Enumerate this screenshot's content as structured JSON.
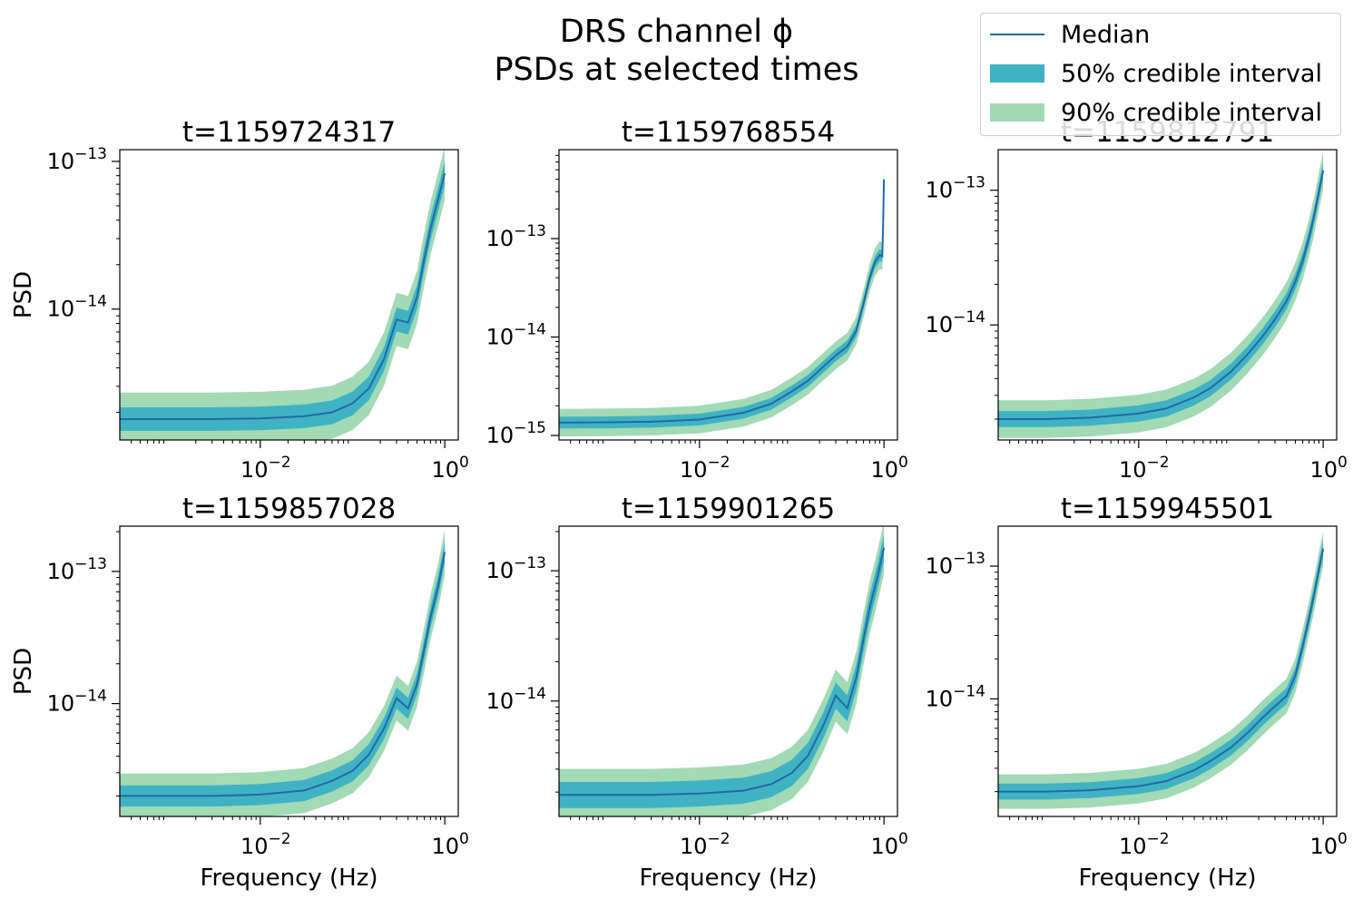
{
  "title": "DRS channel ϕ",
  "subtitle": "PSDs at selected times",
  "legend": {
    "median": "Median",
    "ci50": "50% credible interval",
    "ci90": "90% credible interval"
  },
  "colors": {
    "median": "#2269a8",
    "ci50": "#3fb3c4",
    "ci90": "#a1dab4"
  },
  "chart_data": [
    {
      "type": "line",
      "title": "t=1159724317",
      "xlabel": "",
      "ylabel": "PSD",
      "xscale": "log",
      "yscale": "log",
      "xlim": [
        0.0003,
        1.4
      ],
      "ylim": [
        1.3e-15,
        1.2e-13
      ],
      "xticks": [
        0.01,
        1
      ],
      "yticks": [
        1e-14,
        1e-13
      ],
      "x": [
        0.0003,
        0.001,
        0.003,
        0.01,
        0.03,
        0.06,
        0.1,
        0.15,
        0.22,
        0.3,
        0.4,
        0.5,
        0.6,
        0.7,
        0.85,
        1.0
      ],
      "median": [
        1.8e-15,
        1.8e-15,
        1.8e-15,
        1.82e-15,
        1.88e-15,
        2e-15,
        2.3e-15,
        2.9e-15,
        4.6e-15,
        8.5e-15,
        8.1e-15,
        1.2e-14,
        2.2e-14,
        3.5e-14,
        5.6e-14,
        8.3e-14
      ],
      "ci50_halfwidth": 0.08,
      "ci90_halfwidth": 0.18
    },
    {
      "type": "line",
      "title": "t=1159768554",
      "xlabel": "",
      "ylabel": "",
      "xscale": "log",
      "yscale": "log",
      "xlim": [
        0.0003,
        1.4
      ],
      "ylim": [
        9e-16,
        8e-13
      ],
      "xticks": [
        0.01,
        1
      ],
      "yticks": [
        1e-15,
        1e-14,
        1e-13
      ],
      "x": [
        0.0003,
        0.001,
        0.003,
        0.01,
        0.03,
        0.06,
        0.1,
        0.15,
        0.22,
        0.3,
        0.4,
        0.5,
        0.6,
        0.7,
        0.8,
        0.9,
        0.96,
        0.98,
        1.0
      ],
      "median": [
        1.35e-15,
        1.36e-15,
        1.38e-15,
        1.45e-15,
        1.7e-15,
        2.1e-15,
        2.8e-15,
        3.6e-15,
        5e-15,
        6.5e-15,
        8e-15,
        1.15e-14,
        2.2e-14,
        4e-14,
        5.8e-14,
        6.8e-14,
        6.6e-14,
        1.5e-13,
        4e-13
      ],
      "ci50_halfwidth": 0.06,
      "ci90_halfwidth": 0.14
    },
    {
      "type": "line",
      "title": "t=1159812791",
      "xlabel": "",
      "ylabel": "",
      "xscale": "log",
      "yscale": "log",
      "xlim": [
        0.0003,
        1.4
      ],
      "ylim": [
        1.4e-15,
        2e-13
      ],
      "xticks": [
        0.01,
        1
      ],
      "yticks": [
        1e-14,
        1e-13
      ],
      "x": [
        0.0003,
        0.001,
        0.003,
        0.01,
        0.02,
        0.04,
        0.06,
        0.1,
        0.15,
        0.22,
        0.3,
        0.4,
        0.5,
        0.6,
        0.7,
        0.8,
        0.9,
        1.0
      ],
      "median": [
        2e-15,
        2e-15,
        2.05e-15,
        2.2e-15,
        2.4e-15,
        2.9e-15,
        3.4e-15,
        4.5e-15,
        6e-15,
        8.2e-15,
        1.1e-14,
        1.5e-14,
        2.1e-14,
        3e-14,
        4.4e-14,
        6.5e-14,
        9.8e-14,
        1.4e-13
      ],
      "ci50_halfwidth": 0.06,
      "ci90_halfwidth": 0.14
    },
    {
      "type": "line",
      "title": "t=1159857028",
      "xlabel": "Frequency (Hz)",
      "ylabel": "PSD",
      "xscale": "log",
      "yscale": "log",
      "xlim": [
        0.0003,
        1.4
      ],
      "ylim": [
        1.4e-15,
        2.2e-13
      ],
      "xticks": [
        0.01,
        1
      ],
      "yticks": [
        1e-14,
        1e-13
      ],
      "x": [
        0.0003,
        0.001,
        0.003,
        0.01,
        0.03,
        0.06,
        0.1,
        0.15,
        0.22,
        0.3,
        0.4,
        0.5,
        0.6,
        0.7,
        0.85,
        1.0
      ],
      "median": [
        2e-15,
        2e-15,
        2e-15,
        2.05e-15,
        2.2e-15,
        2.6e-15,
        3.1e-15,
        4.1e-15,
        6.5e-15,
        1.1e-14,
        9.2e-15,
        1.4e-14,
        2.6e-14,
        4.5e-14,
        7.8e-14,
        1.4e-13
      ],
      "ci50_halfwidth": 0.08,
      "ci90_halfwidth": 0.17
    },
    {
      "type": "line",
      "title": "t=1159901265",
      "xlabel": "Frequency (Hz)",
      "ylabel": "",
      "xscale": "log",
      "yscale": "log",
      "xlim": [
        0.0003,
        1.4
      ],
      "ylim": [
        1.3e-15,
        2.2e-13
      ],
      "xticks": [
        0.01,
        1
      ],
      "yticks": [
        1e-14,
        1e-13
      ],
      "x": [
        0.0003,
        0.001,
        0.003,
        0.01,
        0.03,
        0.06,
        0.1,
        0.15,
        0.22,
        0.3,
        0.4,
        0.5,
        0.6,
        0.7,
        0.85,
        1.0
      ],
      "median": [
        1.9e-15,
        1.9e-15,
        1.9e-15,
        1.95e-15,
        2.05e-15,
        2.3e-15,
        2.8e-15,
        3.8e-15,
        6.5e-15,
        1.1e-14,
        8.8e-15,
        1.5e-14,
        3e-14,
        5.2e-14,
        9e-14,
        1.5e-13
      ],
      "ci50_halfwidth": 0.1,
      "ci90_halfwidth": 0.2
    },
    {
      "type": "line",
      "title": "t=1159945501",
      "xlabel": "Frequency (Hz)",
      "ylabel": "",
      "xscale": "log",
      "yscale": "log",
      "xlim": [
        0.0003,
        1.4
      ],
      "ylim": [
        1.3e-15,
        2e-13
      ],
      "xticks": [
        0.01,
        1
      ],
      "yticks": [
        1e-14,
        1e-13
      ],
      "x": [
        0.0003,
        0.001,
        0.003,
        0.01,
        0.02,
        0.04,
        0.06,
        0.1,
        0.15,
        0.22,
        0.3,
        0.4,
        0.5,
        0.6,
        0.7,
        0.8,
        0.9,
        1.0
      ],
      "median": [
        2e-15,
        2e-15,
        2.05e-15,
        2.2e-15,
        2.4e-15,
        2.9e-15,
        3.4e-15,
        4.3e-15,
        5.5e-15,
        7.2e-15,
        8.8e-15,
        1.05e-14,
        1.5e-14,
        2.5e-14,
        4e-14,
        6.2e-14,
        9.5e-14,
        1.35e-13
      ],
      "ci50_halfwidth": 0.06,
      "ci90_halfwidth": 0.13
    }
  ]
}
